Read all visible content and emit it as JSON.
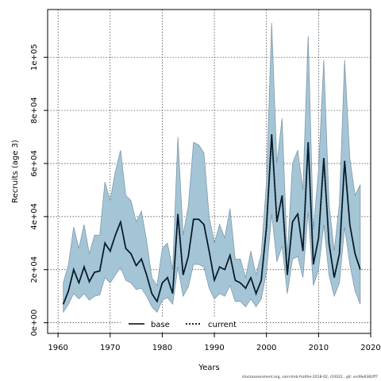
{
  "chart_data": {
    "type": "area",
    "xlabel": "Years",
    "ylabel": "Recruits (age 3)",
    "xlim": [
      1958,
      2020
    ],
    "ylim": [
      -4000,
      118000
    ],
    "x_ticks": [
      1960,
      1970,
      1980,
      1990,
      2000,
      2010,
      2020
    ],
    "y_ticks": [
      0,
      20000,
      40000,
      60000,
      80000,
      100000
    ],
    "y_tick_labels": [
      "0e+00",
      "2e+04",
      "4e+04",
      "6e+04",
      "8e+04",
      "1e+05"
    ],
    "grid": true,
    "legend_position": "bottom-center",
    "legend": [
      {
        "label": "base",
        "line_style": "solid",
        "color": "#000000"
      },
      {
        "label": "current",
        "line_style": "dotted",
        "color": "#0a2a44"
      }
    ],
    "band_color": "#a4c5d6",
    "band_edge_color": "#7f9aaa",
    "x": [
      1961,
      1962,
      1963,
      1964,
      1965,
      1966,
      1967,
      1968,
      1969,
      1970,
      1971,
      1972,
      1973,
      1974,
      1975,
      1976,
      1977,
      1978,
      1979,
      1980,
      1981,
      1982,
      1983,
      1984,
      1985,
      1986,
      1987,
      1988,
      1989,
      1990,
      1991,
      1992,
      1993,
      1994,
      1995,
      1996,
      1997,
      1998,
      1999,
      2000,
      2001,
      2002,
      2003,
      2004,
      2005,
      2006,
      2007,
      2008,
      2009,
      2010,
      2011,
      2012,
      2013,
      2014,
      2015,
      2016,
      2017,
      2018
    ],
    "series": [
      {
        "name": "current",
        "values": [
          7000,
          12000,
          20000,
          15000,
          21000,
          15500,
          19000,
          19500,
          30000,
          27000,
          33000,
          38000,
          28000,
          26000,
          21500,
          24000,
          18000,
          11000,
          8000,
          15000,
          17000,
          11000,
          41000,
          18000,
          25000,
          39000,
          39000,
          37000,
          27000,
          16000,
          21000,
          20000,
          25500,
          16000,
          15000,
          13000,
          17000,
          11000,
          16000,
          36000,
          71000,
          38000,
          48000,
          18000,
          38000,
          41000,
          27000,
          68000,
          22000,
          32000,
          62000,
          30000,
          17000,
          26000,
          61000,
          37000,
          26000,
          20000
        ]
      }
    ],
    "band": {
      "upper": [
        15000,
        22000,
        36000,
        28000,
        37000,
        26000,
        33000,
        33000,
        53000,
        46000,
        57000,
        65000,
        48000,
        46000,
        38000,
        42000,
        31000,
        17000,
        14000,
        28000,
        30000,
        20000,
        70000,
        33000,
        44000,
        68000,
        67000,
        64000,
        40000,
        30000,
        37000,
        32000,
        43000,
        24000,
        24000,
        17000,
        27000,
        18000,
        26000,
        53000,
        113000,
        60000,
        77000,
        25000,
        60000,
        65000,
        50000,
        108000,
        35000,
        58000,
        99000,
        45000,
        27000,
        45000,
        99000,
        62000,
        48000,
        52000
      ],
      "lower": [
        4000,
        7000,
        11000,
        9000,
        11000,
        8500,
        10000,
        10500,
        17000,
        15000,
        18000,
        21000,
        16000,
        15000,
        12500,
        13000,
        10000,
        6000,
        4000,
        8500,
        9500,
        7000,
        21000,
        10000,
        13500,
        22000,
        22000,
        21000,
        13000,
        9000,
        11000,
        10000,
        14000,
        8000,
        8000,
        6000,
        9000,
        6000,
        9000,
        19000,
        41000,
        23000,
        29000,
        11000,
        24000,
        25000,
        17000,
        42000,
        14000,
        20000,
        37000,
        18000,
        10000,
        15000,
        36000,
        22000,
        12000,
        7000
      ]
    }
  },
  "footer_text": "stockassessment.org, sam-tmb-fsalthe-2018-02, r10022 , git: ecd9e6382ff7"
}
